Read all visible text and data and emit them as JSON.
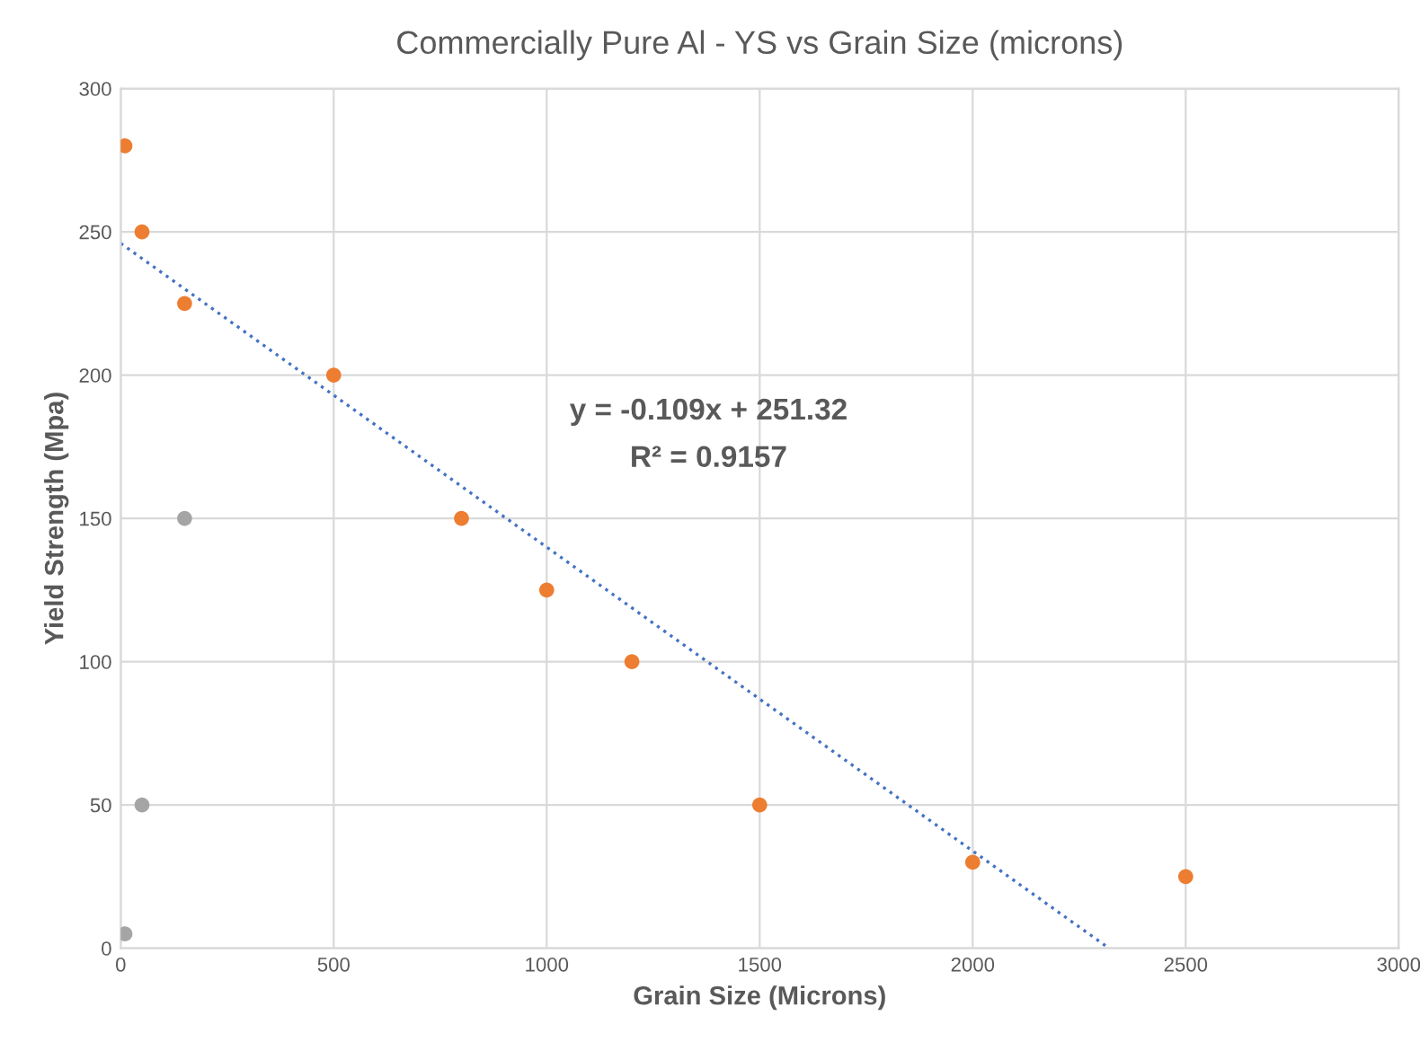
{
  "chart_data": {
    "type": "scatter",
    "title": "Commercially Pure Al - YS vs Grain Size (microns)",
    "xlabel": "Grain Size (Microns)",
    "ylabel": "Yield Strength (Mpa)",
    "series": [
      {
        "color": "#ed7d31",
        "x": [
          10,
          50,
          150,
          500,
          800,
          1000,
          1200,
          1500,
          2000,
          2500
        ],
        "values": [
          280,
          250,
          225,
          200,
          150,
          125,
          100,
          50,
          30,
          25
        ]
      },
      {
        "color": "#a5a5a5",
        "x": [
          10,
          50,
          150
        ],
        "values": [
          5,
          50,
          150
        ]
      },
      {
        "type": "line",
        "color": "#4472c4",
        "line_style": "dotted",
        "marker": "none",
        "x": [
          0,
          2320
        ],
        "values": [
          246,
          0
        ]
      }
    ],
    "annotations": [
      "y = -0.109x + 251.32",
      "R² = 0.9157"
    ],
    "xlim": [
      0,
      3000
    ],
    "xticks": [
      0,
      500,
      1000,
      1500,
      2000,
      2500,
      3000
    ],
    "ylim": [
      0,
      300
    ],
    "yticks": [
      0,
      50,
      100,
      150,
      200,
      250,
      300
    ],
    "grid": true,
    "marker": "circle"
  }
}
